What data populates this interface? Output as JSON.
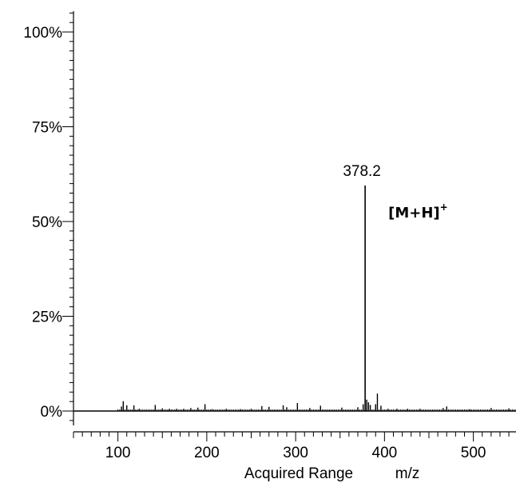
{
  "chart_data": {
    "type": "bar",
    "title": "",
    "xlabel": "Acquired Range",
    "xunit": "m/z",
    "ylabel": "",
    "xlim": [
      50,
      548
    ],
    "ylim": [
      0,
      100
    ],
    "y_ticks": [
      "0%",
      "25%",
      "50%",
      "75%",
      "100%"
    ],
    "y_tick_values": [
      0,
      25,
      50,
      75,
      100
    ],
    "x_ticks": [
      "100",
      "200",
      "300",
      "400",
      "500"
    ],
    "x_tick_values": [
      100,
      200,
      300,
      400,
      500
    ],
    "grid": false,
    "legend": "none",
    "series": [
      {
        "x": [
          104,
          106,
          110,
          118,
          124,
          142,
          150,
          158,
          166,
          174,
          182,
          190,
          198,
          206,
          222,
          238,
          250,
          262,
          270,
          286,
          290,
          302,
          316,
          328,
          352,
          370,
          376,
          378.2,
          380,
          382,
          384,
          390,
          392,
          396,
          404,
          414,
          426,
          440,
          466,
          470,
          496,
          520,
          540
        ],
        "values": [
          1.2,
          2.6,
          1.5,
          1.5,
          0.6,
          1.6,
          0.7,
          0.6,
          0.6,
          0.6,
          0.8,
          0.9,
          1.8,
          0.5,
          0.6,
          0.5,
          0.6,
          1.3,
          1.1,
          1.5,
          1.0,
          2.1,
          0.8,
          1.4,
          0.9,
          1.0,
          1.8,
          59.5,
          3.0,
          2.3,
          1.6,
          1.8,
          4.6,
          1.4,
          0.6,
          0.6,
          0.6,
          0.6,
          0.8,
          1.2,
          0.5,
          0.8,
          0.7
        ]
      }
    ],
    "peak_labels": [
      {
        "x": 378.2,
        "text": "378.2"
      }
    ],
    "annotations": [
      {
        "near_x": 378.2,
        "text": "[M+H]",
        "superscript": "+"
      }
    ]
  }
}
